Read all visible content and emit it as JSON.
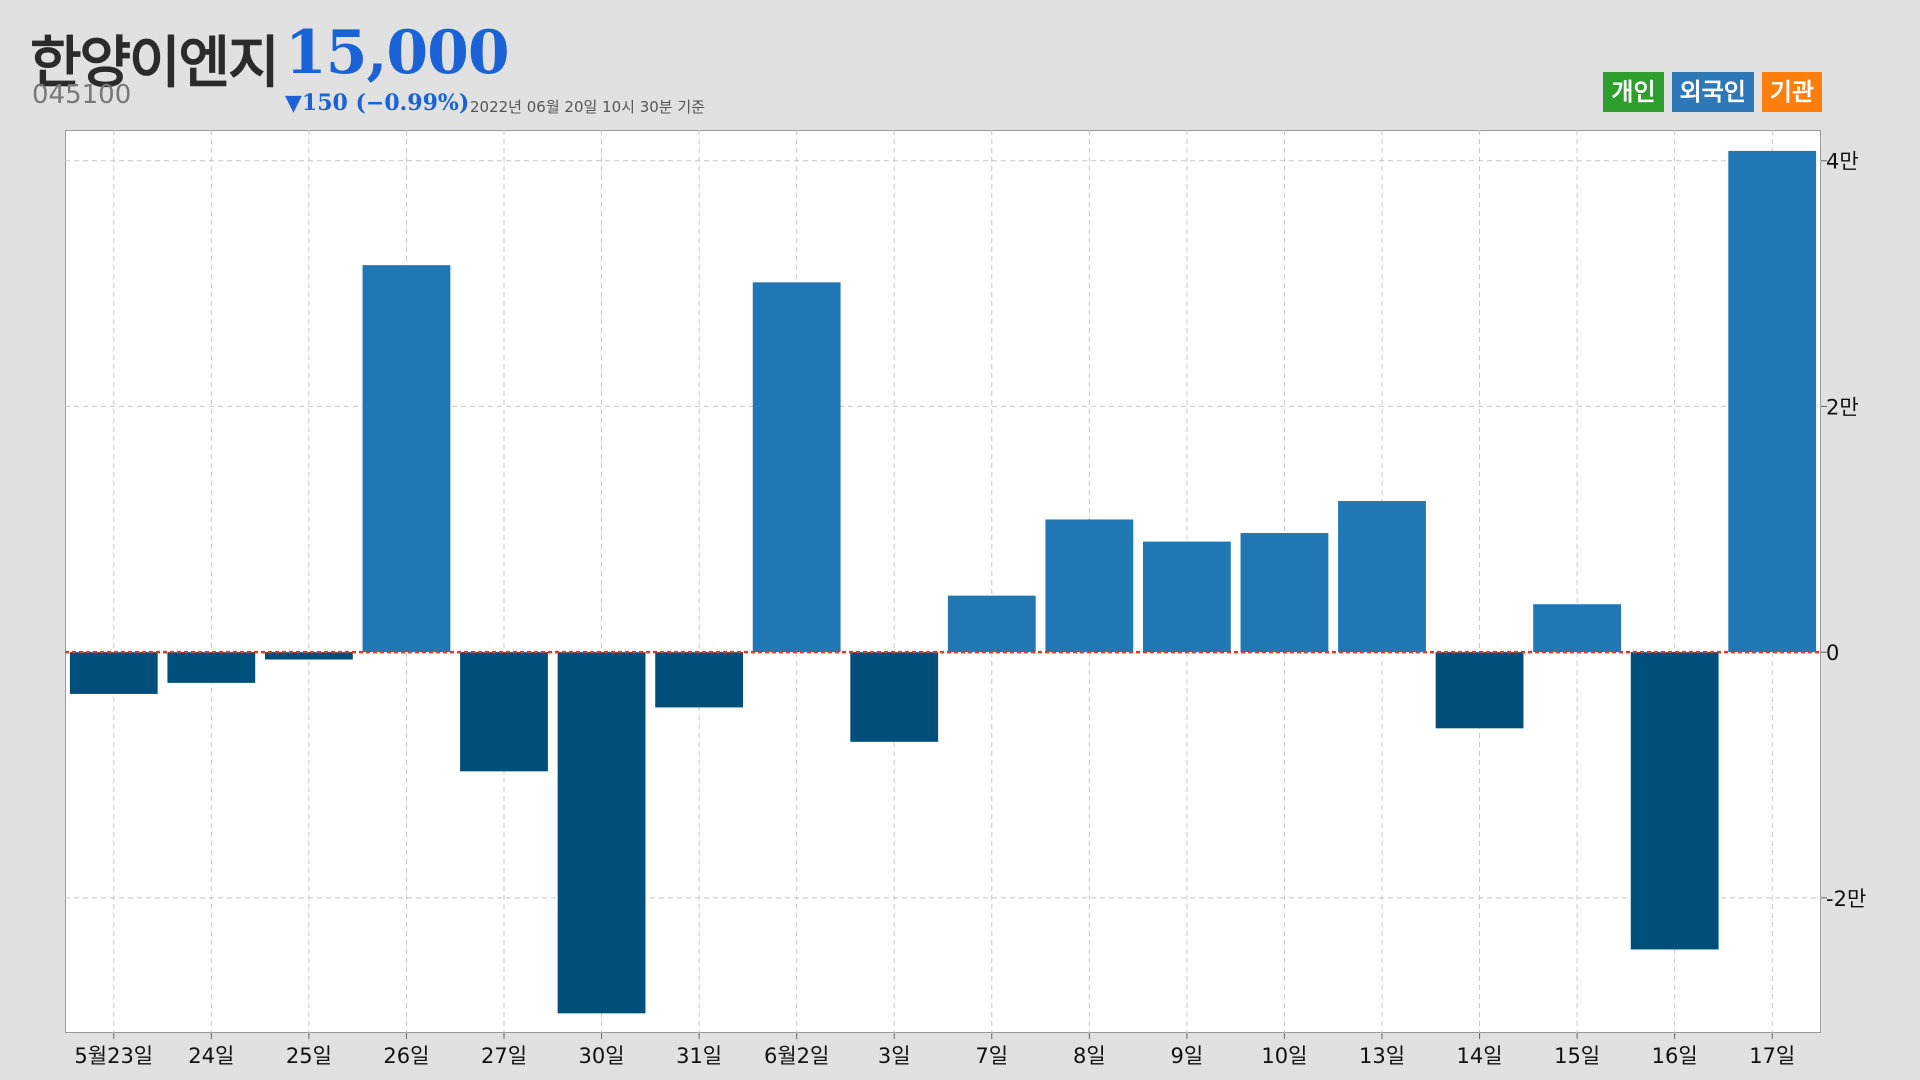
{
  "header": {
    "stock_name": "한양이엔지",
    "stock_code": "045100",
    "price": "15,000",
    "change": "▼150 (−0.99%)",
    "as_of": "2022년 06월 20일 10시 30분 기준"
  },
  "legend": [
    {
      "label": "개인",
      "color": "#2e9e2e"
    },
    {
      "label": "외국인",
      "color": "#2f78b7"
    },
    {
      "label": "기관",
      "color": "#ff7f0e"
    }
  ],
  "chart_data": {
    "type": "bar",
    "title": "",
    "xlabel": "",
    "ylabel": "",
    "categories": [
      "5월23일",
      "24일",
      "25일",
      "26일",
      "27일",
      "30일",
      "31일",
      "6월2일",
      "3일",
      "7일",
      "8일",
      "9일",
      "10일",
      "13일",
      "14일",
      "15일",
      "16일",
      "17일"
    ],
    "series": [
      {
        "name": "외국인",
        "values": [
          -3400,
          -2500,
          -600,
          31500,
          -9700,
          -29400,
          -4500,
          30100,
          -7300,
          4600,
          10800,
          9000,
          9700,
          12300,
          -6200,
          3900,
          -24200,
          40800
        ]
      }
    ],
    "positive_color": "#2077b4",
    "negative_color": "#004f7a",
    "ylim": [
      -31000,
      42500
    ],
    "yticks": [
      -20000,
      0,
      20000,
      40000
    ],
    "ytick_labels": [
      "-2만",
      "0",
      "2만",
      "4만"
    ],
    "y_axis_side": "right",
    "zero_line_color": "#e8332a",
    "grid": true
  }
}
